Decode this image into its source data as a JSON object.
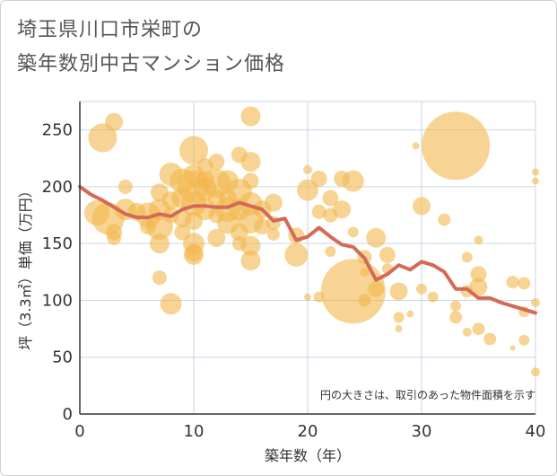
{
  "title_line1": "埼玉県川口市栄町の",
  "title_line2": "築年数別中古マンション価格",
  "colors": {
    "bubble": "#f2b84b",
    "line": "#d46a55",
    "grid": "#c9d6e3",
    "axis": "#333333"
  },
  "chart_data": {
    "type": "scatter",
    "xlabel": "築年数（年）",
    "ylabel": "坪（3.3㎡）単価（万円）",
    "xlim": [
      0,
      40
    ],
    "ylim": [
      0,
      275
    ],
    "xticks": [
      "0",
      "10",
      "20",
      "30",
      "40"
    ],
    "yticks": [
      "0",
      "50",
      "100",
      "150",
      "200",
      "250"
    ],
    "grid": true,
    "note": "円の大きさは、取引のあった物件面積を示す",
    "bubbles": [
      [
        2,
        243,
        16
      ],
      [
        3,
        257,
        10
      ],
      [
        1.5,
        177,
        14
      ],
      [
        2.5,
        172,
        18
      ],
      [
        3,
        160,
        9
      ],
      [
        3,
        155,
        8
      ],
      [
        4,
        200,
        8
      ],
      [
        4,
        180,
        12
      ],
      [
        5,
        178,
        10
      ],
      [
        6,
        175,
        14
      ],
      [
        6,
        165,
        9
      ],
      [
        7,
        195,
        10
      ],
      [
        7,
        180,
        12
      ],
      [
        7,
        165,
        15
      ],
      [
        7,
        150,
        11
      ],
      [
        7,
        120,
        8
      ],
      [
        8,
        211,
        13
      ],
      [
        8,
        188,
        10
      ],
      [
        8,
        175,
        9
      ],
      [
        8,
        97,
        12
      ],
      [
        9,
        205,
        14
      ],
      [
        9,
        190,
        12
      ],
      [
        9,
        172,
        10
      ],
      [
        9,
        160,
        9
      ],
      [
        10,
        232,
        16
      ],
      [
        10,
        210,
        12
      ],
      [
        10,
        200,
        18
      ],
      [
        10,
        185,
        14
      ],
      [
        10,
        170,
        10
      ],
      [
        10,
        150,
        12
      ],
      [
        10,
        142,
        10
      ],
      [
        10,
        140,
        11
      ],
      [
        11,
        218,
        9
      ],
      [
        11,
        206,
        10
      ],
      [
        11,
        198,
        13
      ],
      [
        11,
        180,
        12
      ],
      [
        12,
        222,
        9
      ],
      [
        12,
        203,
        16
      ],
      [
        12,
        190,
        10
      ],
      [
        12,
        175,
        9
      ],
      [
        12,
        155,
        10
      ],
      [
        13,
        205,
        12
      ],
      [
        13,
        190,
        10
      ],
      [
        13,
        180,
        14
      ],
      [
        13,
        168,
        12
      ],
      [
        14,
        228,
        9
      ],
      [
        14,
        196,
        14
      ],
      [
        14,
        180,
        12
      ],
      [
        14,
        160,
        10
      ],
      [
        14,
        150,
        8
      ],
      [
        15,
        262,
        11
      ],
      [
        15,
        222,
        11
      ],
      [
        15,
        205,
        9
      ],
      [
        15,
        185,
        13
      ],
      [
        15,
        170,
        14
      ],
      [
        15,
        148,
        11
      ],
      [
        15,
        135,
        11
      ],
      [
        16,
        180,
        10
      ],
      [
        16,
        165,
        9
      ],
      [
        17,
        186,
        10
      ],
      [
        17,
        168,
        8
      ],
      [
        17,
        158,
        7
      ],
      [
        19,
        140,
        13
      ],
      [
        19,
        157,
        9
      ],
      [
        20,
        215,
        5
      ],
      [
        20,
        197,
        12
      ],
      [
        20,
        103,
        4
      ],
      [
        21,
        207,
        9
      ],
      [
        21,
        178,
        8
      ],
      [
        21,
        103,
        6
      ],
      [
        22,
        190,
        9
      ],
      [
        22,
        175,
        8
      ],
      [
        22,
        143,
        6
      ],
      [
        23,
        207,
        9
      ],
      [
        23,
        180,
        10
      ],
      [
        24,
        205,
        12
      ],
      [
        24,
        108,
        36
      ],
      [
        24,
        160,
        6
      ],
      [
        25,
        125,
        5
      ],
      [
        25,
        138,
        8
      ],
      [
        25,
        100,
        7
      ],
      [
        26,
        155,
        11
      ],
      [
        26,
        110,
        9
      ],
      [
        27,
        140,
        9
      ],
      [
        27,
        128,
        6
      ],
      [
        28,
        108,
        10
      ],
      [
        28,
        85,
        6
      ],
      [
        28,
        75,
        4
      ],
      [
        29,
        88,
        4
      ],
      [
        29.5,
        236,
        4
      ],
      [
        30,
        183,
        10
      ],
      [
        30,
        110,
        6
      ],
      [
        31,
        103,
        6
      ],
      [
        32,
        171,
        7
      ],
      [
        33,
        236,
        38
      ],
      [
        33,
        85,
        7
      ],
      [
        33,
        95,
        6
      ],
      [
        34,
        138,
        6
      ],
      [
        34,
        108,
        7
      ],
      [
        34,
        72,
        5
      ],
      [
        35,
        153,
        5
      ],
      [
        35,
        123,
        9
      ],
      [
        35,
        112,
        10
      ],
      [
        35,
        75,
        7
      ],
      [
        36,
        66,
        7
      ],
      [
        38,
        116,
        7
      ],
      [
        38,
        58,
        3
      ],
      [
        39,
        115,
        7
      ],
      [
        39,
        90,
        6
      ],
      [
        39,
        65,
        6
      ],
      [
        40,
        213,
        4
      ],
      [
        40,
        205,
        4
      ],
      [
        40,
        98,
        5
      ],
      [
        40,
        37,
        5
      ]
    ],
    "series": [
      {
        "x": [
          0,
          1,
          2,
          3,
          4,
          5,
          6,
          7,
          8,
          9,
          10,
          11,
          12,
          13,
          14,
          15,
          16,
          17,
          18,
          19,
          20,
          21,
          22,
          23,
          24,
          25,
          26,
          27,
          28,
          29,
          30,
          31,
          32,
          33,
          34,
          35,
          36,
          37,
          38,
          39,
          40
        ],
        "values": [
          200,
          193,
          188,
          182,
          176,
          173,
          173,
          176,
          174,
          180,
          183,
          183,
          182,
          182,
          186,
          183,
          180,
          170,
          172,
          153,
          156,
          164,
          156,
          149,
          147,
          137,
          118,
          123,
          131,
          127,
          134,
          131,
          125,
          110,
          110,
          102,
          102,
          98,
          95,
          92,
          89
        ]
      }
    ]
  }
}
